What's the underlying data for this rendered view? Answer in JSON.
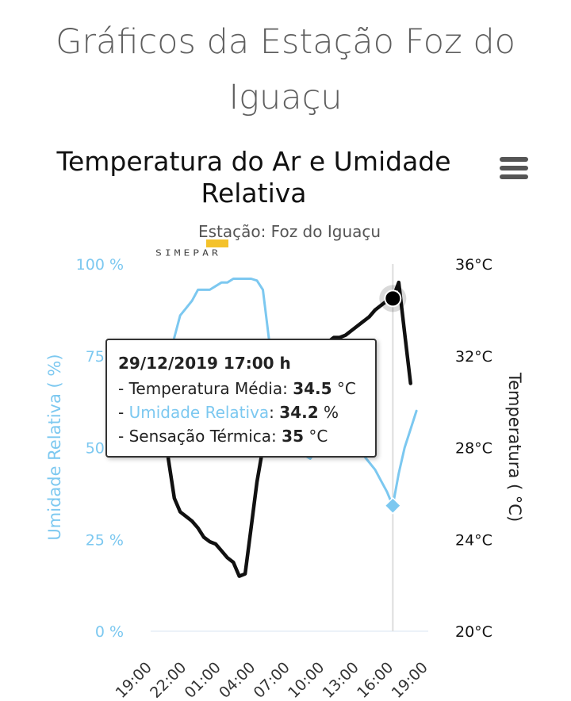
{
  "page": {
    "title": "Gráficos da Estação Foz do Iguaçu"
  },
  "chart": {
    "title": "Temperatura do Ar e Umidade Relativa",
    "subtitle": "Estação: Foz do Iguaçu",
    "logo_text": "SIMEPAR",
    "menu_icon": "hamburger-menu-icon"
  },
  "tooltip": {
    "header": "29/12/2019 17:00 h",
    "rows": [
      {
        "label": "- Temperatura Média: ",
        "value": "34.5",
        "unit": " °C",
        "color": "#222222"
      },
      {
        "label": "Umidade Relativa",
        "value": "34.2",
        "unit": " %",
        "color": "#7cc8f0"
      },
      {
        "label": "- Sensação Térmica: ",
        "value": "35",
        "unit": " °C",
        "color": "#222222"
      }
    ]
  },
  "chart_data": {
    "type": "line",
    "title": "Temperatura do Ar e Umidade Relativa",
    "subtitle": "Estação: Foz do Iguaçu",
    "x_tick_labels": [
      "19:00",
      "22:00",
      "01:00",
      "04:00",
      "07:00",
      "10:00",
      "13:00",
      "16:00",
      "19:00"
    ],
    "y_left": {
      "label": "Umidade Relativa ( %)",
      "ticks": [
        "0 %",
        "25 %",
        "50 %",
        "75 %",
        "100 %"
      ],
      "range": [
        0,
        100
      ],
      "color": "#7cc8f0"
    },
    "y_right": {
      "label": "Temperatura ( °C)",
      "ticks": [
        "20°C",
        "24°C",
        "28°C",
        "32°C",
        "36°C"
      ],
      "range": [
        20,
        36
      ],
      "color": "#111111"
    },
    "series": [
      {
        "name": "Umidade Relativa",
        "axis": "left",
        "color": "#7cc8f0",
        "x_hours": [
          2,
          3,
          4,
          5,
          6,
          7,
          8,
          9,
          10,
          11,
          12,
          13,
          14,
          15,
          16,
          17,
          18,
          19,
          20,
          21,
          22,
          23,
          24,
          25,
          26,
          27,
          28,
          29,
          30,
          31,
          32,
          33,
          34,
          35,
          36,
          37,
          38,
          39,
          40,
          41,
          42,
          43,
          44,
          45
        ],
        "values": [
          62,
          74,
          80,
          86,
          88,
          90,
          93,
          93,
          93,
          94,
          95,
          95,
          96,
          96,
          96,
          96,
          95.5,
          93,
          80,
          70,
          60,
          56,
          53,
          50,
          48,
          47,
          49,
          52,
          55,
          55,
          54,
          53,
          52,
          51,
          48,
          46,
          44,
          41,
          38,
          34.2,
          43,
          50,
          55,
          60
        ]
      },
      {
        "name": "Temperatura Média",
        "axis": "right",
        "color": "#111111",
        "x_hours": [
          2,
          3,
          4,
          5,
          6,
          7,
          8,
          9,
          10,
          11,
          12,
          13,
          14,
          15,
          16,
          17,
          18,
          19,
          20,
          21,
          22,
          23,
          24,
          25,
          26,
          27,
          28,
          29,
          30,
          31,
          32,
          33,
          34,
          35,
          36,
          37,
          38,
          39,
          40,
          41,
          42,
          43,
          44
        ],
        "values": [
          30,
          27.5,
          25.8,
          25.2,
          25,
          24.8,
          24.5,
          24.1,
          23.9,
          23.8,
          23.5,
          23.2,
          23,
          22.4,
          22.5,
          24.5,
          26.5,
          28,
          28.8,
          29.5,
          30,
          30.5,
          31,
          31.3,
          31.8,
          32.2,
          32.5,
          32.5,
          32.6,
          32.8,
          32.8,
          32.9,
          33.1,
          33.3,
          33.5,
          33.7,
          34,
          34.2,
          34.4,
          34.5,
          35.2,
          33,
          30.8
        ]
      }
    ],
    "highlight": {
      "x_hour": 41,
      "label": "29/12/2019 17:00 h"
    },
    "grid": false,
    "legend": "none"
  }
}
